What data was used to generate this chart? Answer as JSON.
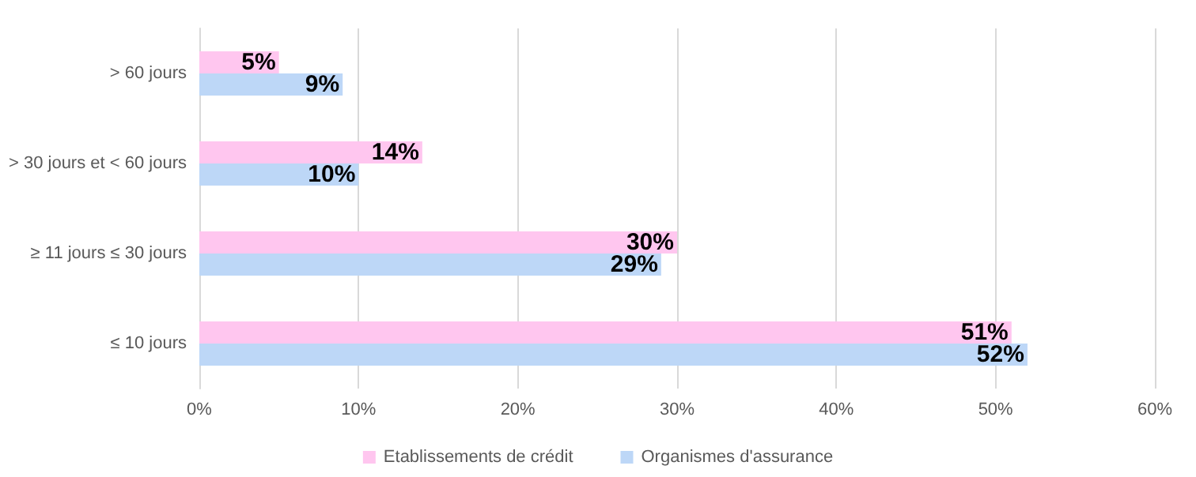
{
  "chart_data": {
    "type": "bar",
    "orientation": "horizontal",
    "categories": [
      "> 60 jours",
      "> 30 jours et < 60 jours",
      "≥ 11 jours ≤ 30 jours",
      "≤ 10 jours"
    ],
    "series": [
      {
        "name": "Etablissements de crédit",
        "color": "#ffc6ef",
        "values": [
          5,
          14,
          30,
          51
        ],
        "value_labels": [
          "5%",
          "14%",
          "30%",
          "51%"
        ]
      },
      {
        "name": "Organismes d'assurance",
        "color": "#bdd7f7",
        "values": [
          9,
          10,
          29,
          52
        ],
        "value_labels": [
          "9%",
          "10%",
          "29%",
          "52%"
        ]
      }
    ],
    "xlim": [
      0,
      60
    ],
    "xticks": [
      {
        "value": 0,
        "label": "0%"
      },
      {
        "value": 10,
        "label": "10%"
      },
      {
        "value": 20,
        "label": "20%"
      },
      {
        "value": 30,
        "label": "30%"
      },
      {
        "value": 40,
        "label": "40%"
      },
      {
        "value": 50,
        "label": "50%"
      },
      {
        "value": 60,
        "label": "60%"
      }
    ],
    "grid": "x",
    "legend": "bottom"
  }
}
